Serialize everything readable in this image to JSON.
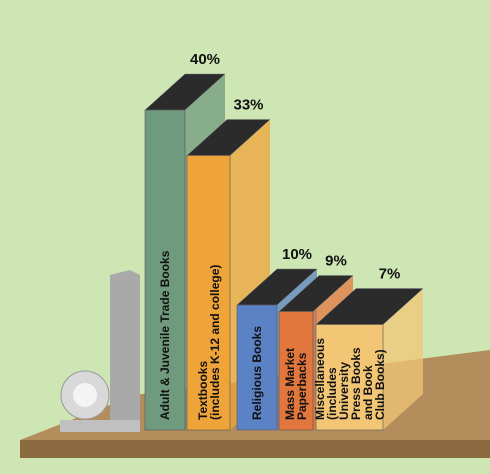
{
  "chart_data": {
    "type": "bar",
    "categories": [
      "Adult & Juvenile Trade Books",
      "Textbooks\n(includes K-12 and college)",
      "Religious Books",
      "Mass Market\nPaperbacks",
      "Miscellaneous\n(includes University\nPress Books and Book\nClub Books)"
    ],
    "values": [
      40,
      33,
      10,
      9,
      7
    ],
    "value_labels": [
      "40%",
      "33%",
      "10%",
      "9%",
      "7%"
    ],
    "colors": [
      "#6f9a7e",
      "#efa43a",
      "#5b82c4",
      "#e2773e",
      "#f2c675"
    ]
  }
}
